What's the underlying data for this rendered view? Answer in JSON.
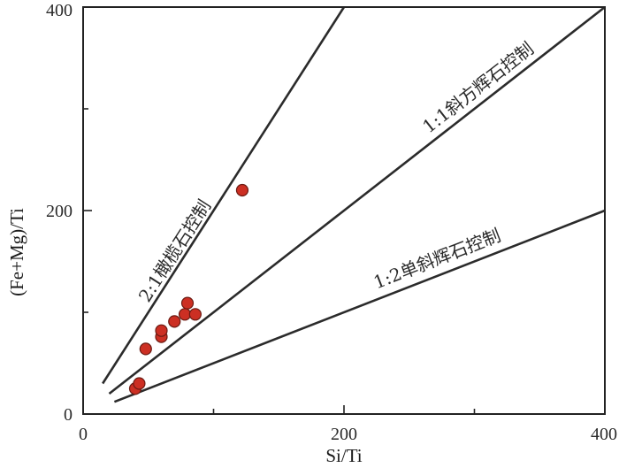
{
  "chart_data": {
    "type": "scatter",
    "title": "",
    "xlabel": "Si/Ti",
    "ylabel": "(Fe+Mg)/Ti",
    "xlim": [
      0,
      400
    ],
    "ylim": [
      0,
      400
    ],
    "x_ticks": [
      "0",
      "200",
      "400"
    ],
    "y_ticks": [
      "0",
      "200",
      "400"
    ],
    "grid": false,
    "series": [
      {
        "points": [
          [
            40,
            25
          ],
          [
            43,
            30
          ],
          [
            48,
            64
          ],
          [
            60,
            76
          ],
          [
            60,
            82
          ],
          [
            70,
            91
          ],
          [
            78,
            98
          ],
          [
            80,
            109
          ],
          [
            86,
            98
          ],
          [
            122,
            220
          ]
        ]
      }
    ],
    "reference_lines": [
      {
        "label": "2:1橄榄石控制",
        "slope": 2,
        "x_range": [
          15,
          200
        ]
      },
      {
        "label": "1:1斜方辉石控制",
        "slope": 1,
        "x_range": [
          20,
          400
        ]
      },
      {
        "label": "1:2单斜辉石控制",
        "slope": 0.5,
        "x_range": [
          24,
          400
        ]
      }
    ]
  }
}
